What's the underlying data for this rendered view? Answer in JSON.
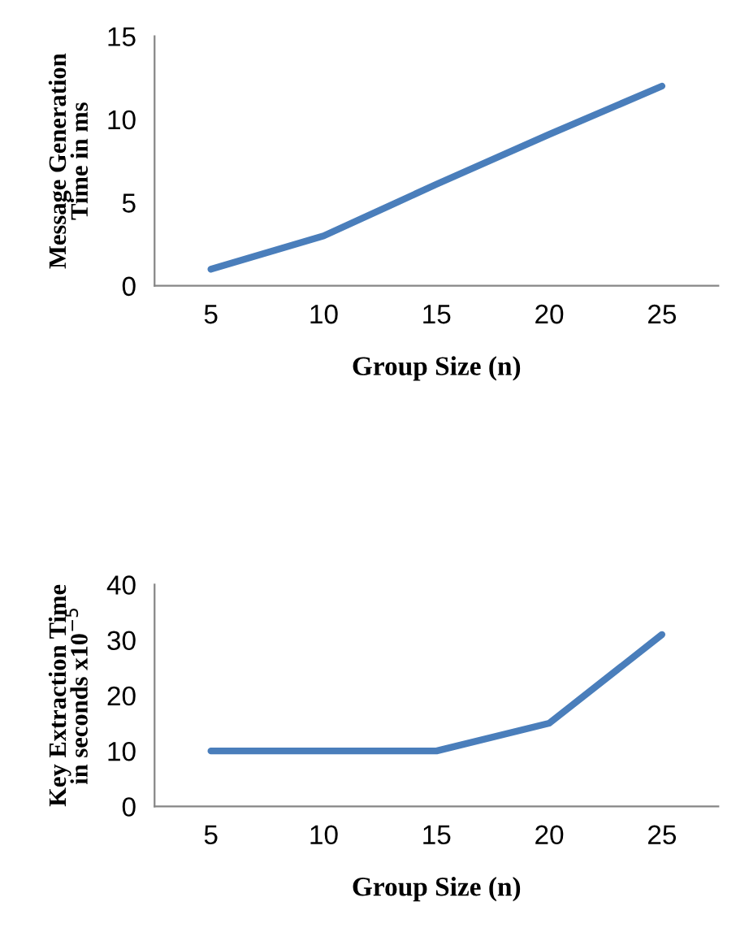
{
  "chart_data": [
    {
      "type": "line",
      "categories": [
        "5",
        "10",
        "15",
        "20",
        "25"
      ],
      "xlabel": "Group Size (n)",
      "ylabel": "Message Generation\nTime in ms",
      "ylim": [
        0,
        15
      ],
      "yticks": [
        0,
        5,
        10,
        15
      ],
      "grid": false,
      "legend": false,
      "marker": "none",
      "line_style": "solid",
      "series": [
        {
          "color": "#4a7ebb",
          "values": [
            1,
            3,
            6.1,
            9.1,
            12
          ]
        }
      ]
    },
    {
      "type": "line",
      "categories": [
        "5",
        "10",
        "15",
        "20",
        "25"
      ],
      "xlabel": "Group Size (n)",
      "ylabel": "Key Extraction Time\nin seconds x10$^{−5}$",
      "ylim": [
        0,
        40
      ],
      "yticks": [
        0,
        10,
        20,
        30,
        40
      ],
      "grid": false,
      "legend": false,
      "marker": "none",
      "line_style": "solid",
      "series": [
        {
          "color": "#4a7ebb",
          "values": [
            10,
            10,
            10,
            15,
            31
          ]
        }
      ]
    }
  ]
}
